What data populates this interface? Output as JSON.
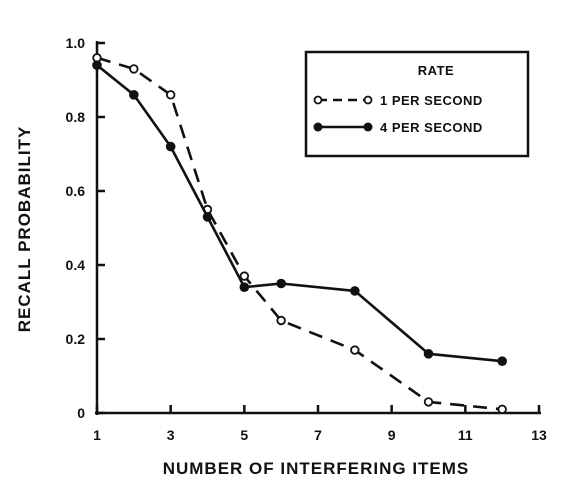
{
  "chart_data": {
    "type": "line",
    "xlabel": "NUMBER OF INTERFERING ITEMS",
    "ylabel": "RECALL PROBABILITY",
    "xlim": [
      1,
      13
    ],
    "ylim": [
      0,
      1.0
    ],
    "x_ticks": [
      1,
      3,
      5,
      7,
      9,
      11,
      13
    ],
    "y_ticks": [
      {
        "value": 0,
        "label": "0"
      },
      {
        "value": 0.2,
        "label": "0.2"
      },
      {
        "value": 0.4,
        "label": "0.4"
      },
      {
        "value": 0.6,
        "label": "0.6"
      },
      {
        "value": 0.8,
        "label": "0.8"
      },
      {
        "value": 1.0,
        "label": "1.0"
      }
    ],
    "legend": {
      "title": "RATE",
      "placement": "top-right"
    },
    "series": [
      {
        "name": "1 PER SECOND",
        "style": "dashed",
        "marker": "open-circle",
        "color": "#111111",
        "x": [
          1,
          2,
          3,
          4,
          5,
          6,
          8,
          10,
          12
        ],
        "y": [
          0.96,
          0.93,
          0.86,
          0.55,
          0.37,
          0.25,
          0.17,
          0.03,
          0.01
        ]
      },
      {
        "name": "4 PER SECOND",
        "style": "solid",
        "marker": "filled-circle",
        "color": "#111111",
        "x": [
          1,
          2,
          3,
          4,
          5,
          6,
          8,
          10,
          12
        ],
        "y": [
          0.94,
          0.86,
          0.72,
          0.53,
          0.34,
          0.35,
          0.33,
          0.16,
          0.14
        ]
      }
    ]
  }
}
